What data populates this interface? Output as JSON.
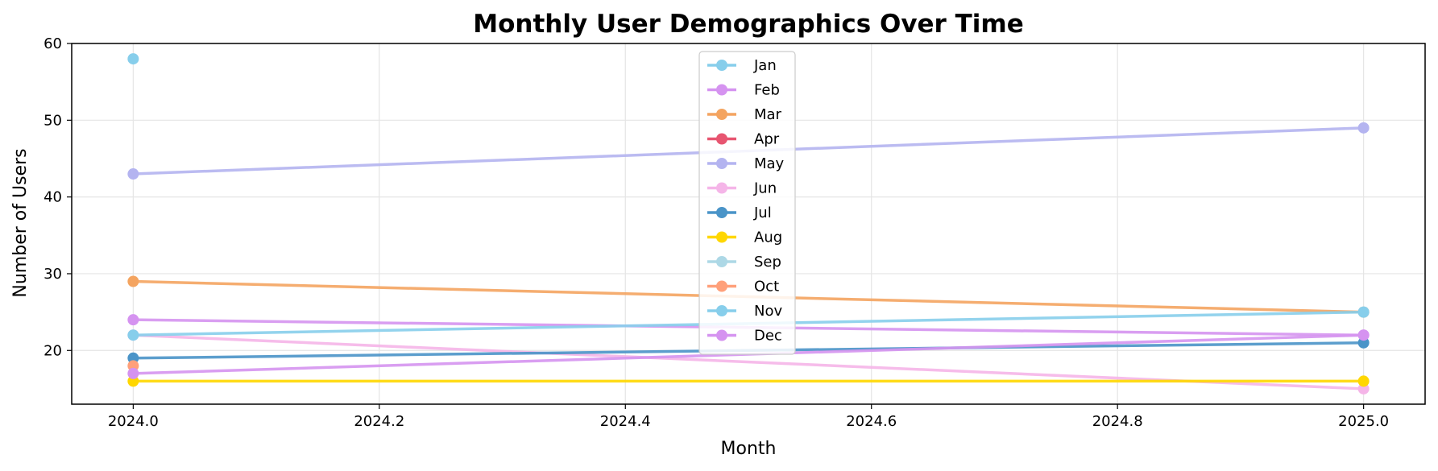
{
  "chart_data": {
    "type": "line",
    "title": "Monthly User Demographics Over Time",
    "xlabel": "Month",
    "ylabel": "Number of Users",
    "xlim": [
      2023.95,
      2025.05
    ],
    "ylim": [
      13,
      60
    ],
    "xticks": [
      2024.0,
      2024.2,
      2024.4,
      2024.6,
      2024.8,
      2025.0
    ],
    "xtick_labels": [
      "2024.0",
      "2024.2",
      "2024.4",
      "2024.6",
      "2024.8",
      "2025.0"
    ],
    "yticks": [
      20,
      30,
      40,
      50,
      60
    ],
    "ytick_labels": [
      "20",
      "30",
      "40",
      "50",
      "60"
    ],
    "grid": true,
    "legend_position": "top-center",
    "x": [
      2024.0,
      2025.0
    ],
    "series": [
      {
        "name": "Jan",
        "color": "#87CEEB",
        "values": [
          58,
          null
        ]
      },
      {
        "name": "Feb",
        "color": "#D593F0",
        "values": [
          24,
          22
        ]
      },
      {
        "name": "Mar",
        "color": "#F4A460",
        "values": [
          29,
          25
        ]
      },
      {
        "name": "Apr",
        "color": "#E75570",
        "values": [
          null,
          null
        ]
      },
      {
        "name": "May",
        "color": "#B4B4F0",
        "values": [
          43,
          49
        ]
      },
      {
        "name": "Jun",
        "color": "#F5B5E8",
        "values": [
          22,
          15
        ]
      },
      {
        "name": "Jul",
        "color": "#4A94C8",
        "values": [
          19,
          21
        ]
      },
      {
        "name": "Aug",
        "color": "#FFD700",
        "values": [
          16,
          16
        ]
      },
      {
        "name": "Sep",
        "color": "#ADD8E6",
        "values": [
          null,
          25
        ]
      },
      {
        "name": "Oct",
        "color": "#FFA07A",
        "values": [
          18,
          null
        ]
      },
      {
        "name": "Nov",
        "color": "#87CEEB",
        "values": [
          22,
          25
        ]
      },
      {
        "name": "Dec",
        "color": "#D593F0",
        "values": [
          17,
          22
        ]
      }
    ]
  }
}
